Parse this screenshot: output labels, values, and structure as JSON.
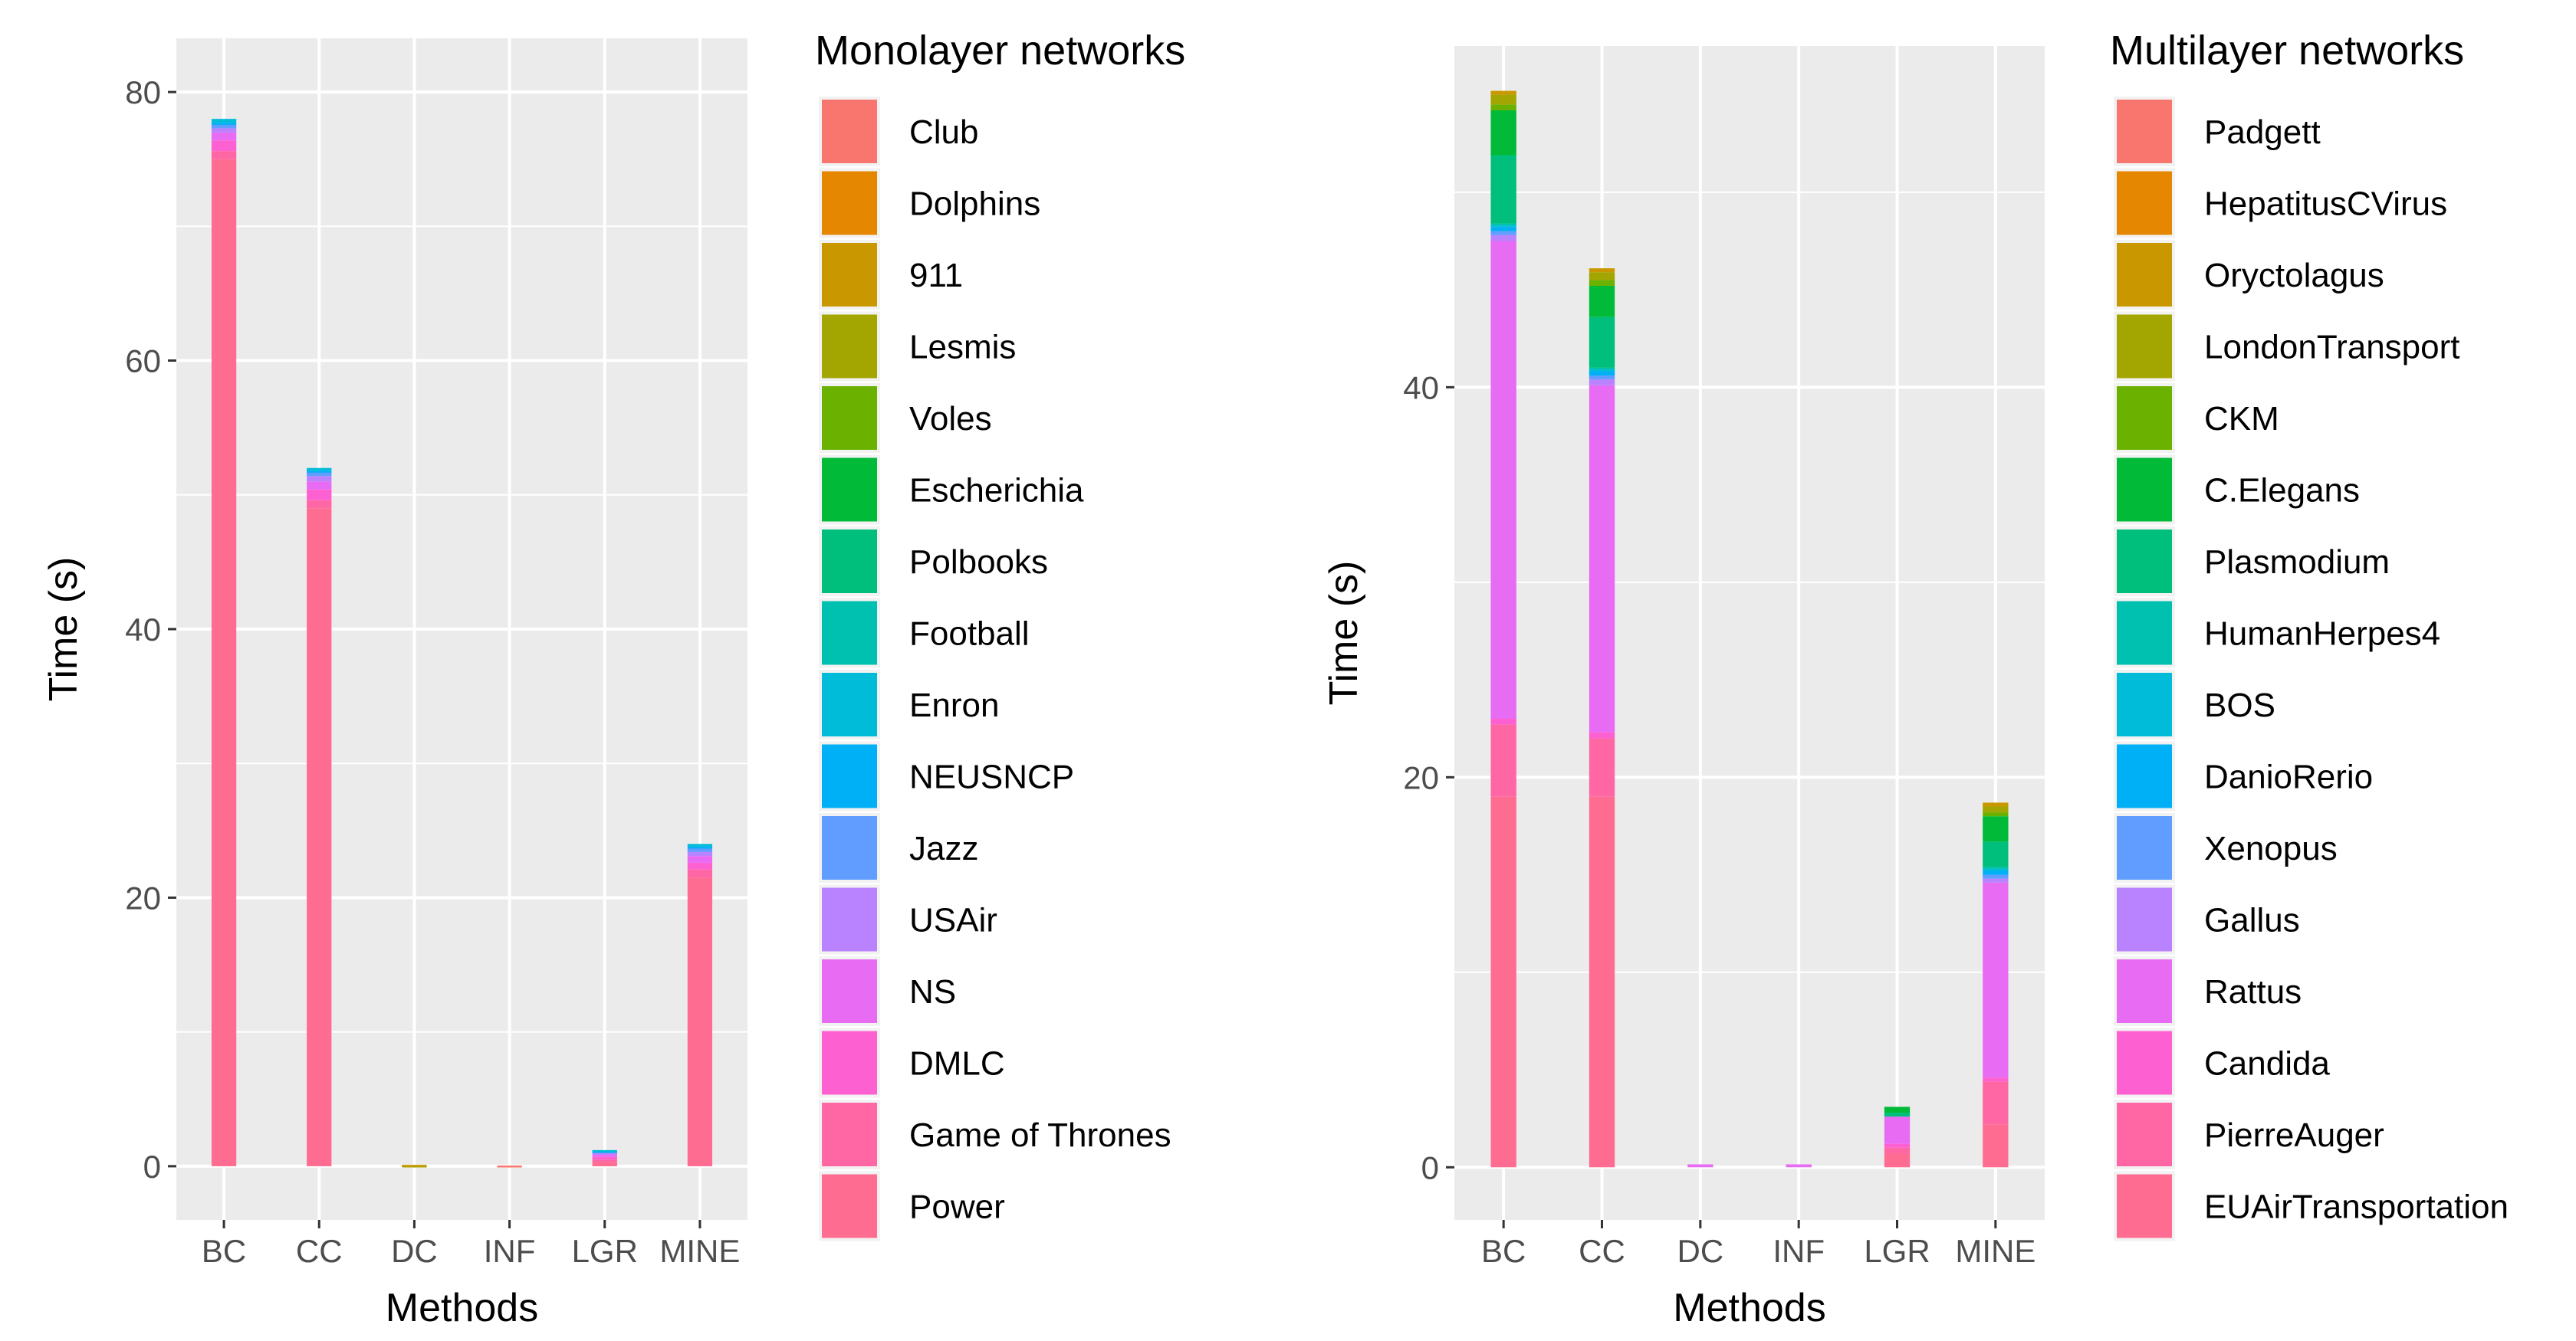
{
  "chart_data": [
    {
      "type": "bar",
      "stacked": true,
      "xlabel": "Methods",
      "ylabel": "Time (s)",
      "categories": [
        "BC",
        "CC",
        "DC",
        "INF",
        "LGR",
        "MINE"
      ],
      "ylim": [
        -4,
        84
      ],
      "yticks": [
        0,
        20,
        40,
        60,
        80
      ],
      "legend_title": "Monolayer networks",
      "series": [
        {
          "name": "Club",
          "color": "#F8766D",
          "values": [
            0,
            0,
            0,
            0.05,
            0,
            0
          ]
        },
        {
          "name": "Dolphins",
          "color": "#E58700",
          "values": [
            0,
            0,
            0,
            0,
            0,
            0
          ]
        },
        {
          "name": "911",
          "color": "#C99800",
          "values": [
            0,
            0,
            0.05,
            0,
            0,
            0
          ]
        },
        {
          "name": "Lesmis",
          "color": "#A3A500",
          "values": [
            0,
            0,
            0.05,
            0,
            0,
            0
          ]
        },
        {
          "name": "Voles",
          "color": "#6BB100",
          "values": [
            0,
            0,
            0,
            0,
            0,
            0
          ]
        },
        {
          "name": "Escherichia",
          "color": "#00BA38",
          "values": [
            0,
            0,
            0,
            0,
            0,
            0
          ]
        },
        {
          "name": "Polbooks",
          "color": "#00BF7D",
          "values": [
            0,
            0,
            0,
            0,
            0,
            0
          ]
        },
        {
          "name": "Football",
          "color": "#00C0AF",
          "values": [
            0,
            0,
            0,
            0,
            0,
            0
          ]
        },
        {
          "name": "Enron",
          "color": "#00BCD8",
          "values": [
            0.3,
            0.2,
            0,
            0,
            0.05,
            0.2
          ]
        },
        {
          "name": "NEUSNCP",
          "color": "#00B0F6",
          "values": [
            0.1,
            0.1,
            0,
            0,
            0.05,
            0.1
          ]
        },
        {
          "name": "Jazz",
          "color": "#619CFF",
          "values": [
            0.3,
            0.3,
            0,
            0,
            0.1,
            0.3
          ]
        },
        {
          "name": "USAir",
          "color": "#B983FF",
          "values": [
            0.3,
            0.4,
            0,
            0,
            0.1,
            0.3
          ]
        },
        {
          "name": "NS",
          "color": "#E76BF3",
          "values": [
            0.6,
            0.6,
            0,
            0,
            0.2,
            0.5
          ]
        },
        {
          "name": "DMLC",
          "color": "#FD61D1",
          "values": [
            0.8,
            0.8,
            0,
            0,
            0.2,
            0.5
          ]
        },
        {
          "name": "Game of Thrones",
          "color": "#FF67A4",
          "values": [
            0.6,
            0.6,
            0,
            0,
            0.2,
            0.6
          ]
        },
        {
          "name": "Power",
          "color": "#FF6C91",
          "values": [
            75.0,
            49.0,
            0,
            0,
            0.3,
            21.5
          ]
        }
      ]
    },
    {
      "type": "bar",
      "stacked": true,
      "xlabel": "Methods",
      "ylabel": "Time (s)",
      "categories": [
        "BC",
        "CC",
        "DC",
        "INF",
        "LGR",
        "MINE"
      ],
      "ylim": [
        -2.7,
        57.5
      ],
      "yticks": [
        0,
        20,
        40
      ],
      "legend_title": "Multilayer networks",
      "series": [
        {
          "name": "Padgett",
          "color": "#F8766D",
          "values": [
            0,
            0,
            0,
            0,
            0,
            0
          ]
        },
        {
          "name": "HepatitusCVirus",
          "color": "#E58700",
          "values": [
            0,
            0,
            0,
            0,
            0,
            0
          ]
        },
        {
          "name": "Oryctolagus",
          "color": "#C99800",
          "values": [
            0.2,
            0.2,
            0,
            0,
            0,
            0.2
          ]
        },
        {
          "name": "LondonTransport",
          "color": "#A3A500",
          "values": [
            0.5,
            0.4,
            0,
            0,
            0,
            0.3
          ]
        },
        {
          "name": "CKM",
          "color": "#6BB100",
          "values": [
            0.3,
            0.3,
            0,
            0,
            0,
            0.2
          ]
        },
        {
          "name": "C.Elegans",
          "color": "#00BA38",
          "values": [
            2.3,
            1.6,
            0,
            0,
            0.3,
            1.3
          ]
        },
        {
          "name": "Plasmodium",
          "color": "#00BF7D",
          "values": [
            3.5,
            2.6,
            0,
            0,
            0.2,
            1.3
          ]
        },
        {
          "name": "HumanHerpes4",
          "color": "#00C0AF",
          "values": [
            0.1,
            0.1,
            0,
            0,
            0,
            0.1
          ]
        },
        {
          "name": "BOS",
          "color": "#00BCD8",
          "values": [
            0.1,
            0.1,
            0,
            0,
            0,
            0.1
          ]
        },
        {
          "name": "DanioRerio",
          "color": "#00B0F6",
          "values": [
            0.2,
            0.2,
            0,
            0,
            0,
            0.2
          ]
        },
        {
          "name": "Xenopus",
          "color": "#619CFF",
          "values": [
            0.2,
            0.2,
            0,
            0,
            0,
            0.2
          ]
        },
        {
          "name": "Gallus",
          "color": "#B983FF",
          "values": [
            0.3,
            0.3,
            0,
            0,
            0,
            0.2
          ]
        },
        {
          "name": "Rattus",
          "color": "#E76BF3",
          "values": [
            24.5,
            17.8,
            0.15,
            0.15,
            1.4,
            10.0
          ]
        },
        {
          "name": "Candida",
          "color": "#FD61D1",
          "values": [
            0.3,
            0.3,
            0,
            0,
            0.2,
            0.2
          ]
        },
        {
          "name": "PierreAuger",
          "color": "#FF67A4",
          "values": [
            3.7,
            3.0,
            0,
            0,
            0.3,
            2.2
          ]
        },
        {
          "name": "EUAirTransportation",
          "color": "#FF6C91",
          "values": [
            19.0,
            19.0,
            0,
            0,
            0.7,
            2.2
          ]
        }
      ]
    }
  ]
}
